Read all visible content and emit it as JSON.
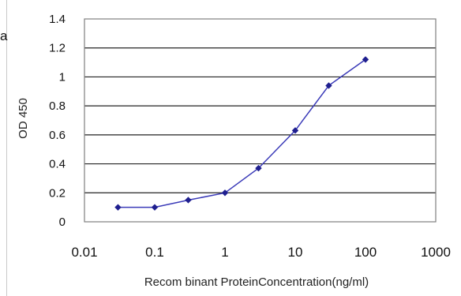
{
  "panel_letter": "a",
  "colors": {
    "plot_border": "#7f7f7f",
    "gridline": "#222222",
    "series_line": "#3a3ab8",
    "marker": "#1f1f8f"
  },
  "chart_data": {
    "type": "line",
    "title": "",
    "xlabel": "Recom binant ProteinConcentration(ng/ml)",
    "ylabel": "OD 450",
    "x_scale": "log",
    "xlim": [
      0.01,
      1000
    ],
    "ylim": [
      0,
      1.4
    ],
    "grid": "horizontal",
    "legend": "none",
    "x_tick_values": [
      0.01,
      0.1,
      1,
      10,
      100,
      1000
    ],
    "x_tick_labels": [
      "0.01",
      "0.1",
      "1",
      "10",
      "100",
      "1000"
    ],
    "y_tick_values": [
      0,
      0.2,
      0.4,
      0.6,
      0.8,
      1,
      1.2,
      1.4
    ],
    "y_tick_labels": [
      "0",
      "0.2",
      "0.4",
      "0.6",
      "0.8",
      "1",
      "1.2",
      "1.4"
    ],
    "series": [
      {
        "x": [
          0.03,
          0.1,
          0.3,
          1,
          3,
          10,
          30,
          100
        ],
        "y": [
          0.1,
          0.1,
          0.15,
          0.2,
          0.37,
          0.63,
          0.94,
          1.12
        ]
      }
    ]
  }
}
